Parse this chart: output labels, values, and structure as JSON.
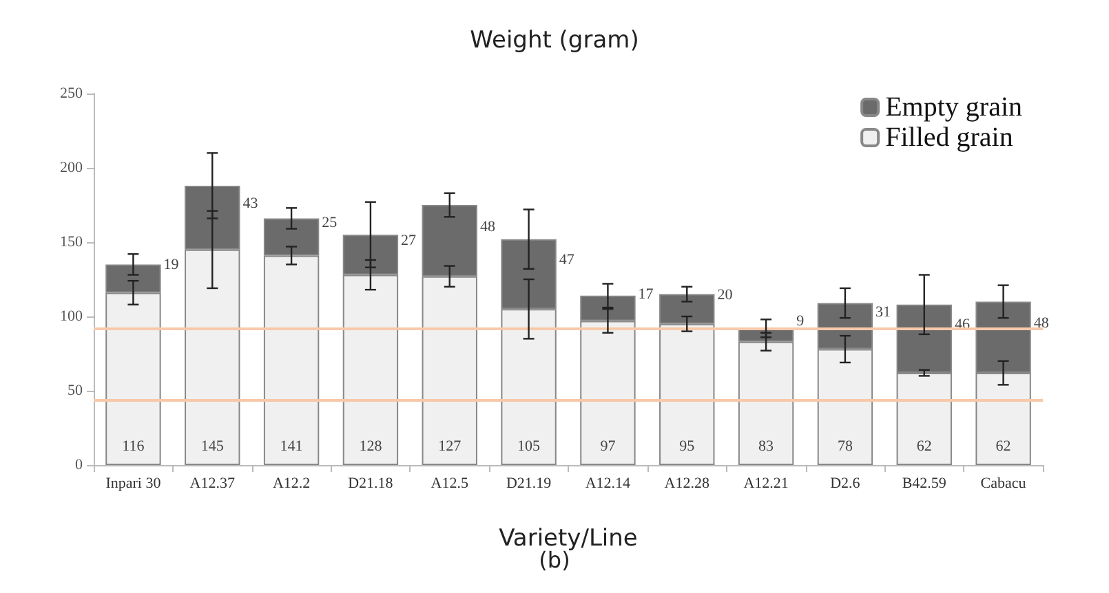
{
  "chart_data": {
    "type": "bar",
    "title": "Weight (gram)",
    "xlabel": "Variety/Line",
    "annotations": [
      "(b)"
    ],
    "categories": [
      "Inpari 30",
      "A12.37",
      "A12.2",
      "D21.18",
      "A12.5",
      "D21.19",
      "A12.14",
      "A12.28",
      "A12.21",
      "D2.6",
      "B42.59",
      "Cabacu"
    ],
    "stacked": true,
    "data_labels": true,
    "legend": "top right",
    "grid": false,
    "ylim": [
      0,
      250
    ],
    "yticks": [
      0,
      50,
      100,
      150,
      200,
      250
    ],
    "series": [
      {
        "name": "Filled grain",
        "color": "#f0f0f0",
        "values": [
          116,
          145,
          141,
          128,
          127,
          105,
          97,
          95,
          83,
          78,
          62,
          62
        ],
        "errors": [
          8,
          26,
          6,
          10,
          7,
          20,
          8,
          5,
          6,
          9,
          2,
          8
        ]
      },
      {
        "name": "Empty grain",
        "color": "#6b6b6b",
        "values": [
          19,
          43,
          25,
          27,
          48,
          47,
          17,
          20,
          9,
          31,
          46,
          48
        ],
        "errors": [
          7,
          22,
          7,
          22,
          8,
          20,
          8,
          5,
          6,
          10,
          20,
          11
        ]
      }
    ],
    "ref_lines": [
      {
        "axis": "y",
        "value": 92,
        "color": "#f8c9a8"
      },
      {
        "axis": "y",
        "value": 44,
        "color": "#f8c9a8"
      }
    ]
  }
}
